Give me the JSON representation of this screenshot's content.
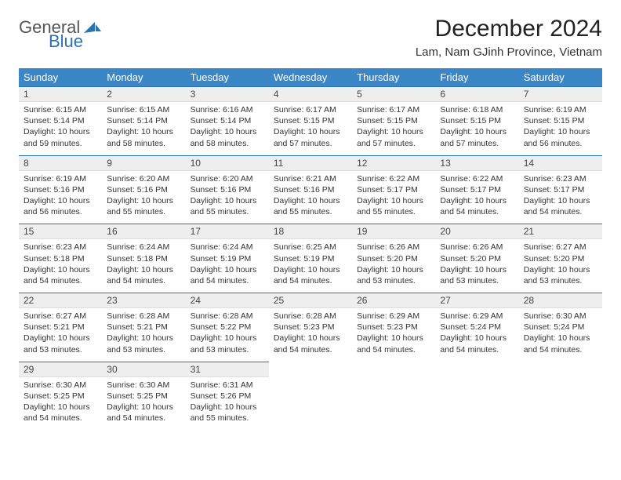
{
  "logo": {
    "text1": "General",
    "text2": "Blue",
    "icon_color": "#2a72b5"
  },
  "title": "December 2024",
  "location": "Lam, Nam GJinh Province, Vietnam",
  "colors": {
    "header_bg": "#3b86c6",
    "header_text": "#ffffff",
    "daynum_bg": "#eeeeee",
    "daynum_border_top": "#2a72b5",
    "body_text": "#333333"
  },
  "day_headers": [
    "Sunday",
    "Monday",
    "Tuesday",
    "Wednesday",
    "Thursday",
    "Friday",
    "Saturday"
  ],
  "weeks": [
    [
      {
        "n": "1",
        "sr": "Sunrise: 6:15 AM",
        "ss": "Sunset: 5:14 PM",
        "dl": "Daylight: 10 hours and 59 minutes."
      },
      {
        "n": "2",
        "sr": "Sunrise: 6:15 AM",
        "ss": "Sunset: 5:14 PM",
        "dl": "Daylight: 10 hours and 58 minutes."
      },
      {
        "n": "3",
        "sr": "Sunrise: 6:16 AM",
        "ss": "Sunset: 5:14 PM",
        "dl": "Daylight: 10 hours and 58 minutes."
      },
      {
        "n": "4",
        "sr": "Sunrise: 6:17 AM",
        "ss": "Sunset: 5:15 PM",
        "dl": "Daylight: 10 hours and 57 minutes."
      },
      {
        "n": "5",
        "sr": "Sunrise: 6:17 AM",
        "ss": "Sunset: 5:15 PM",
        "dl": "Daylight: 10 hours and 57 minutes."
      },
      {
        "n": "6",
        "sr": "Sunrise: 6:18 AM",
        "ss": "Sunset: 5:15 PM",
        "dl": "Daylight: 10 hours and 57 minutes."
      },
      {
        "n": "7",
        "sr": "Sunrise: 6:19 AM",
        "ss": "Sunset: 5:15 PM",
        "dl": "Daylight: 10 hours and 56 minutes."
      }
    ],
    [
      {
        "n": "8",
        "sr": "Sunrise: 6:19 AM",
        "ss": "Sunset: 5:16 PM",
        "dl": "Daylight: 10 hours and 56 minutes."
      },
      {
        "n": "9",
        "sr": "Sunrise: 6:20 AM",
        "ss": "Sunset: 5:16 PM",
        "dl": "Daylight: 10 hours and 55 minutes."
      },
      {
        "n": "10",
        "sr": "Sunrise: 6:20 AM",
        "ss": "Sunset: 5:16 PM",
        "dl": "Daylight: 10 hours and 55 minutes."
      },
      {
        "n": "11",
        "sr": "Sunrise: 6:21 AM",
        "ss": "Sunset: 5:16 PM",
        "dl": "Daylight: 10 hours and 55 minutes."
      },
      {
        "n": "12",
        "sr": "Sunrise: 6:22 AM",
        "ss": "Sunset: 5:17 PM",
        "dl": "Daylight: 10 hours and 55 minutes."
      },
      {
        "n": "13",
        "sr": "Sunrise: 6:22 AM",
        "ss": "Sunset: 5:17 PM",
        "dl": "Daylight: 10 hours and 54 minutes."
      },
      {
        "n": "14",
        "sr": "Sunrise: 6:23 AM",
        "ss": "Sunset: 5:17 PM",
        "dl": "Daylight: 10 hours and 54 minutes."
      }
    ],
    [
      {
        "n": "15",
        "sr": "Sunrise: 6:23 AM",
        "ss": "Sunset: 5:18 PM",
        "dl": "Daylight: 10 hours and 54 minutes."
      },
      {
        "n": "16",
        "sr": "Sunrise: 6:24 AM",
        "ss": "Sunset: 5:18 PM",
        "dl": "Daylight: 10 hours and 54 minutes."
      },
      {
        "n": "17",
        "sr": "Sunrise: 6:24 AM",
        "ss": "Sunset: 5:19 PM",
        "dl": "Daylight: 10 hours and 54 minutes."
      },
      {
        "n": "18",
        "sr": "Sunrise: 6:25 AM",
        "ss": "Sunset: 5:19 PM",
        "dl": "Daylight: 10 hours and 54 minutes."
      },
      {
        "n": "19",
        "sr": "Sunrise: 6:26 AM",
        "ss": "Sunset: 5:20 PM",
        "dl": "Daylight: 10 hours and 53 minutes."
      },
      {
        "n": "20",
        "sr": "Sunrise: 6:26 AM",
        "ss": "Sunset: 5:20 PM",
        "dl": "Daylight: 10 hours and 53 minutes."
      },
      {
        "n": "21",
        "sr": "Sunrise: 6:27 AM",
        "ss": "Sunset: 5:20 PM",
        "dl": "Daylight: 10 hours and 53 minutes."
      }
    ],
    [
      {
        "n": "22",
        "sr": "Sunrise: 6:27 AM",
        "ss": "Sunset: 5:21 PM",
        "dl": "Daylight: 10 hours and 53 minutes."
      },
      {
        "n": "23",
        "sr": "Sunrise: 6:28 AM",
        "ss": "Sunset: 5:21 PM",
        "dl": "Daylight: 10 hours and 53 minutes."
      },
      {
        "n": "24",
        "sr": "Sunrise: 6:28 AM",
        "ss": "Sunset: 5:22 PM",
        "dl": "Daylight: 10 hours and 53 minutes."
      },
      {
        "n": "25",
        "sr": "Sunrise: 6:28 AM",
        "ss": "Sunset: 5:23 PM",
        "dl": "Daylight: 10 hours and 54 minutes."
      },
      {
        "n": "26",
        "sr": "Sunrise: 6:29 AM",
        "ss": "Sunset: 5:23 PM",
        "dl": "Daylight: 10 hours and 54 minutes."
      },
      {
        "n": "27",
        "sr": "Sunrise: 6:29 AM",
        "ss": "Sunset: 5:24 PM",
        "dl": "Daylight: 10 hours and 54 minutes."
      },
      {
        "n": "28",
        "sr": "Sunrise: 6:30 AM",
        "ss": "Sunset: 5:24 PM",
        "dl": "Daylight: 10 hours and 54 minutes."
      }
    ],
    [
      {
        "n": "29",
        "sr": "Sunrise: 6:30 AM",
        "ss": "Sunset: 5:25 PM",
        "dl": "Daylight: 10 hours and 54 minutes."
      },
      {
        "n": "30",
        "sr": "Sunrise: 6:30 AM",
        "ss": "Sunset: 5:25 PM",
        "dl": "Daylight: 10 hours and 54 minutes."
      },
      {
        "n": "31",
        "sr": "Sunrise: 6:31 AM",
        "ss": "Sunset: 5:26 PM",
        "dl": "Daylight: 10 hours and 55 minutes."
      },
      null,
      null,
      null,
      null
    ]
  ]
}
